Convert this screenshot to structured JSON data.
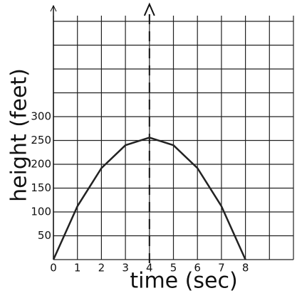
{
  "chart_data": {
    "type": "line",
    "x_label": "time (sec)",
    "y_label": "height (feet)",
    "x": [
      0,
      1,
      2,
      3,
      4,
      5,
      6,
      7,
      8
    ],
    "series": [
      {
        "color": "#222222",
        "values": [
          0,
          112,
          192,
          240,
          256,
          240,
          192,
          112,
          0
        ]
      }
    ],
    "xlim": [
      0,
      10
    ],
    "ylim": [
      0,
      500
    ],
    "xticks": [
      0,
      1,
      2,
      3,
      4,
      5,
      6,
      7,
      8
    ],
    "yticks": [
      50,
      100,
      150,
      200,
      250,
      300
    ],
    "grid": true
  }
}
